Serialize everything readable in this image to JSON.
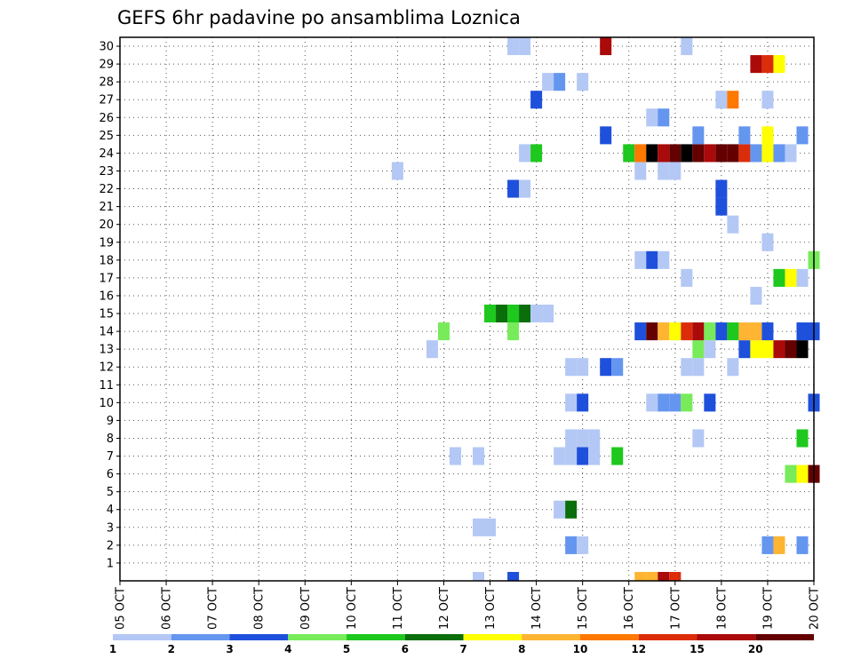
{
  "chart_data": {
    "type": "heatmap",
    "title": "GEFS 6hr padavine po ansamblima Loznica",
    "xlabel": "",
    "ylabel": "",
    "x_ticks": [
      "05 OCT",
      "06 OCT",
      "07 OCT",
      "08 OCT",
      "09 OCT",
      "10 OCT",
      "11 OCT",
      "12 OCT",
      "13 OCT",
      "14 OCT",
      "15 OCT",
      "16 OCT",
      "17 OCT",
      "18 OCT",
      "19 OCT",
      "20 OCT"
    ],
    "y_ticks": [
      "1",
      "2",
      "3",
      "4",
      "5",
      "6",
      "7",
      "8",
      "9",
      "10",
      "11",
      "12",
      "13",
      "14",
      "15",
      "16",
      "17",
      "18",
      "19",
      "20",
      "21",
      "22",
      "23",
      "24",
      "25",
      "26",
      "27",
      "28",
      "29",
      "30"
    ],
    "x_range": [
      "05 OCT 00Z",
      "20 OCT 00Z"
    ],
    "y_range": [
      0,
      30
    ],
    "time_step_hours": 6,
    "grid": "dotted",
    "legend": {
      "placement": "bottom",
      "boundaries": [
        "1",
        "2",
        "3",
        "4",
        "5",
        "6",
        "7",
        "8",
        "10",
        "12",
        "15",
        "20"
      ],
      "colors": [
        "#b4c8f5",
        "#6496f0",
        "#1e50dc",
        "#78eb5a",
        "#1ec81e",
        "#0a6e0a",
        "#ffff00",
        "#ffb432",
        "#ff7800",
        "#dc2d0a",
        "#aa0a0a",
        "#640000"
      ]
    },
    "cells": [
      {
        "member": 0,
        "steps": [
          [
            31,
            0
          ],
          [
            34,
            2
          ],
          [
            45,
            7
          ],
          [
            46,
            7
          ],
          [
            47,
            10
          ],
          [
            48,
            9
          ]
        ]
      },
      {
        "member": 2,
        "steps": [
          [
            39,
            1
          ],
          [
            40,
            0
          ],
          [
            56,
            1
          ],
          [
            57,
            7
          ],
          [
            59,
            1
          ]
        ]
      },
      {
        "member": 3,
        "steps": [
          [
            31,
            0
          ],
          [
            32,
            0
          ]
        ]
      },
      {
        "member": 4,
        "steps": [
          [
            38,
            0
          ],
          [
            39,
            5
          ]
        ]
      },
      {
        "member": 6,
        "steps": [
          [
            58,
            3
          ],
          [
            59,
            6
          ],
          [
            60,
            11
          ]
        ]
      },
      {
        "member": 7,
        "steps": [
          [
            29,
            0
          ],
          [
            31,
            0
          ],
          [
            38,
            0
          ],
          [
            39,
            0
          ],
          [
            40,
            2
          ],
          [
            41,
            0
          ],
          [
            43,
            4
          ]
        ]
      },
      {
        "member": 8,
        "steps": [
          [
            39,
            0
          ],
          [
            40,
            0
          ],
          [
            41,
            0
          ],
          [
            50,
            0
          ],
          [
            59,
            4
          ]
        ]
      },
      {
        "member": 10,
        "steps": [
          [
            39,
            0
          ],
          [
            40,
            2
          ],
          [
            46,
            0
          ],
          [
            47,
            1
          ],
          [
            48,
            1
          ],
          [
            49,
            3
          ],
          [
            51,
            2
          ],
          [
            60,
            2
          ]
        ]
      },
      {
        "member": 12,
        "steps": [
          [
            39,
            0
          ],
          [
            40,
            0
          ],
          [
            42,
            2
          ],
          [
            43,
            1
          ],
          [
            49,
            0
          ],
          [
            50,
            0
          ],
          [
            53,
            0
          ]
        ]
      },
      {
        "member": 13,
        "steps": [
          [
            27,
            0
          ],
          [
            50,
            3
          ],
          [
            51,
            0
          ],
          [
            54,
            2
          ],
          [
            55,
            6
          ],
          [
            56,
            6
          ],
          [
            57,
            10
          ],
          [
            58,
            11
          ],
          [
            59,
            12
          ]
        ]
      },
      {
        "member": 14,
        "steps": [
          [
            28,
            3
          ],
          [
            34,
            3
          ],
          [
            45,
            2
          ],
          [
            46,
            11
          ],
          [
            47,
            7
          ],
          [
            48,
            6
          ],
          [
            49,
            9
          ],
          [
            50,
            10
          ],
          [
            51,
            3
          ],
          [
            52,
            2
          ],
          [
            53,
            4
          ],
          [
            54,
            7
          ],
          [
            55,
            7
          ],
          [
            56,
            2
          ],
          [
            59,
            2
          ],
          [
            60,
            2
          ]
        ]
      },
      {
        "member": 15,
        "steps": [
          [
            32,
            4
          ],
          [
            33,
            5
          ],
          [
            34,
            4
          ],
          [
            35,
            5
          ],
          [
            36,
            0
          ],
          [
            37,
            0
          ]
        ]
      },
      {
        "member": 16,
        "steps": [
          [
            55,
            0
          ]
        ]
      },
      {
        "member": 17,
        "steps": [
          [
            49,
            0
          ],
          [
            57,
            4
          ],
          [
            58,
            6
          ],
          [
            59,
            0
          ]
        ]
      },
      {
        "member": 18,
        "steps": [
          [
            45,
            0
          ],
          [
            46,
            2
          ],
          [
            47,
            0
          ],
          [
            60,
            3
          ]
        ]
      },
      {
        "member": 19,
        "steps": [
          [
            56,
            0
          ]
        ]
      },
      {
        "member": 20,
        "steps": [
          [
            53,
            0
          ]
        ]
      },
      {
        "member": 21,
        "steps": [
          [
            52,
            2
          ]
        ]
      },
      {
        "member": 22,
        "steps": [
          [
            34,
            2
          ],
          [
            35,
            0
          ],
          [
            52,
            2
          ]
        ]
      },
      {
        "member": 23,
        "steps": [
          [
            24,
            0
          ],
          [
            45,
            0
          ],
          [
            47,
            0
          ],
          [
            48,
            0
          ]
        ]
      },
      {
        "member": 24,
        "steps": [
          [
            35,
            0
          ],
          [
            36,
            4
          ],
          [
            44,
            4
          ],
          [
            45,
            8
          ],
          [
            46,
            12
          ],
          [
            47,
            10
          ],
          [
            48,
            11
          ],
          [
            49,
            12
          ],
          [
            50,
            11
          ],
          [
            51,
            10
          ],
          [
            52,
            11
          ],
          [
            53,
            11
          ],
          [
            54,
            9
          ],
          [
            55,
            1
          ],
          [
            56,
            6
          ],
          [
            57,
            1
          ],
          [
            58,
            0
          ]
        ]
      },
      {
        "member": 25,
        "steps": [
          [
            42,
            2
          ],
          [
            50,
            1
          ],
          [
            54,
            1
          ],
          [
            56,
            6
          ],
          [
            59,
            1
          ]
        ]
      },
      {
        "member": 26,
        "steps": [
          [
            46,
            0
          ],
          [
            47,
            1
          ]
        ]
      },
      {
        "member": 27,
        "steps": [
          [
            36,
            2
          ],
          [
            52,
            0
          ],
          [
            53,
            8
          ],
          [
            56,
            0
          ]
        ]
      },
      {
        "member": 28,
        "steps": [
          [
            37,
            0
          ],
          [
            38,
            1
          ],
          [
            40,
            0
          ]
        ]
      },
      {
        "member": 29,
        "steps": [
          [
            55,
            10
          ],
          [
            56,
            9
          ],
          [
            57,
            6
          ]
        ]
      },
      {
        "member": 30,
        "steps": [
          [
            34,
            0
          ],
          [
            35,
            0
          ],
          [
            42,
            10
          ],
          [
            49,
            0
          ]
        ]
      }
    ]
  }
}
